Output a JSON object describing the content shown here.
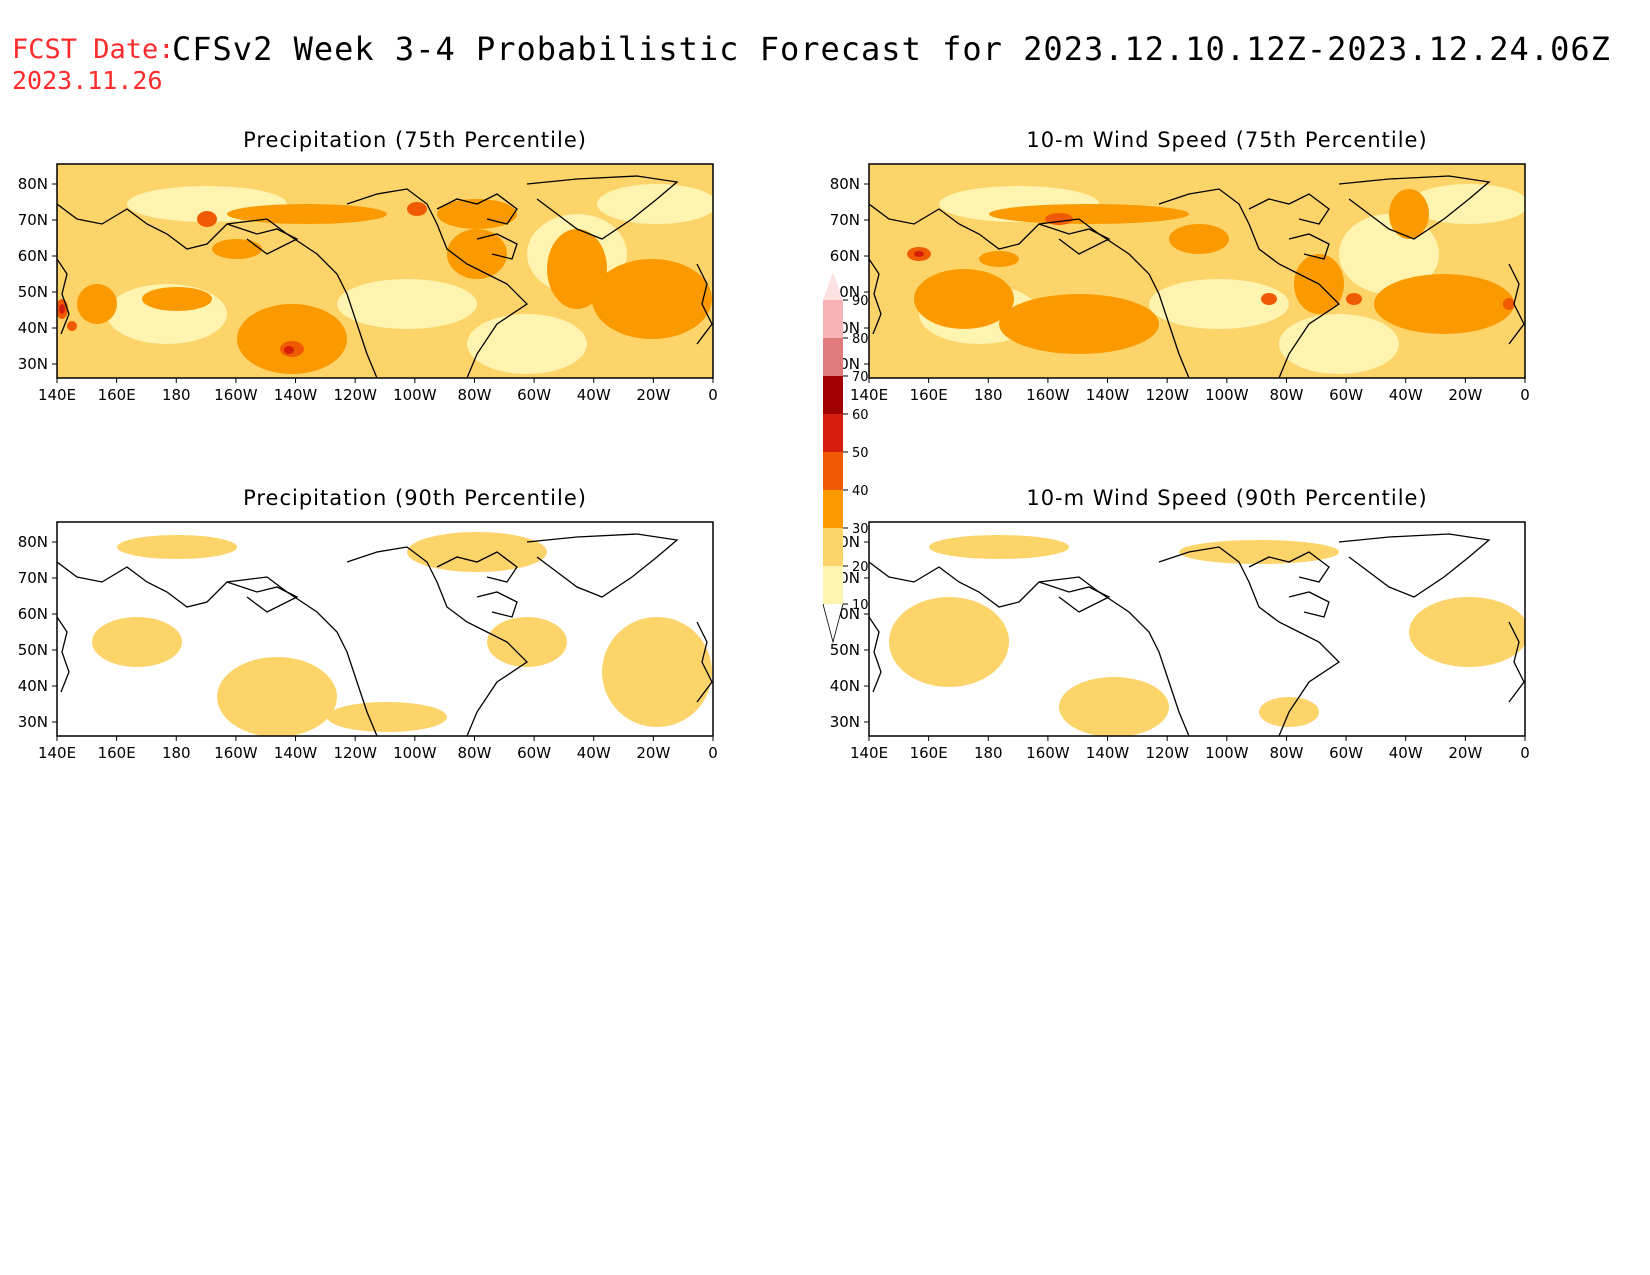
{
  "header": {
    "fcst_label": "FCST Date:",
    "fcst_date": "2023.11.26",
    "title": "CFSv2 Week 3-4 Probabilistic Forecast for 2023.12.10.12Z-2023.12.24.06Z"
  },
  "axes": {
    "lon_labels": [
      "140E",
      "160E",
      "180",
      "160W",
      "140W",
      "120W",
      "100W",
      "80W",
      "60W",
      "40W",
      "20W",
      "0"
    ],
    "lat_labels": [
      "80N",
      "70N",
      "60N",
      "50N",
      "40N",
      "30N"
    ]
  },
  "panels": [
    {
      "id": "precip-75",
      "title": "Precipitation (75th Percentile)",
      "intensity": "high"
    },
    {
      "id": "wind-75",
      "title": "10-m Wind Speed (75th Percentile)",
      "intensity": "high"
    },
    {
      "id": "precip-90",
      "title": "Precipitation (90th Percentile)",
      "intensity": "low"
    },
    {
      "id": "wind-90",
      "title": "10-m Wind Speed (90th Percentile)",
      "intensity": "low"
    }
  ],
  "legend": {
    "labels": [
      "90",
      "80",
      "70",
      "60",
      "50",
      "40",
      "30",
      "20",
      "10"
    ],
    "colors": [
      "#f7b3b6",
      "#e07a7a",
      "#a00000",
      "#d41e0b",
      "#f05a00",
      "#fa9a00",
      "#fcd46a",
      "#fff3b0"
    ]
  },
  "colors": {
    "fcst_label": "#ff2a2a",
    "coast": "#000000"
  }
}
